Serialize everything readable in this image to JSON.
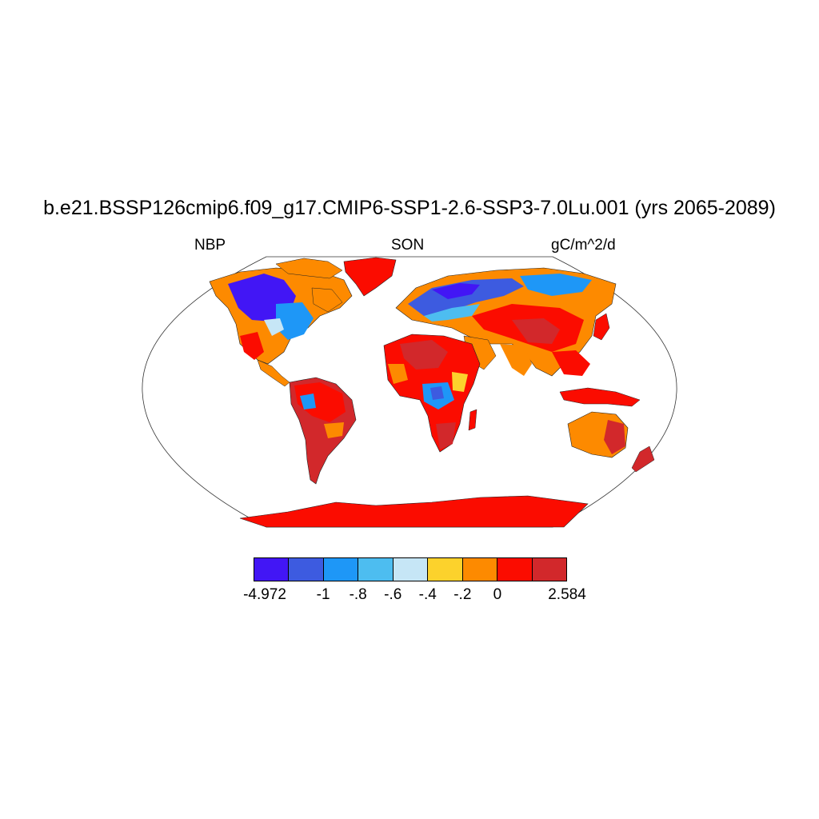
{
  "title": "b.e21.BSSP126cmip6.f09_g17.CMIP6-SSP1-2.6-SSP3-7.0Lu.001 (yrs 2065-2089)",
  "subtitle_left": "NBP",
  "subtitle_center": "SON",
  "subtitle_right": "gC/m^2/d",
  "colorbar": {
    "colors": [
      "#4216f5",
      "#3d5be0",
      "#1e97f7",
      "#4dbdf0",
      "#c6e6f6",
      "#fcd22c",
      "#fd8a00",
      "#fb0c00",
      "#d2282b"
    ],
    "tick_labels": [
      "-4.972",
      "-1",
      "-.8",
      "-.6",
      "-.4",
      "-.2",
      "0",
      "2.584"
    ]
  }
}
